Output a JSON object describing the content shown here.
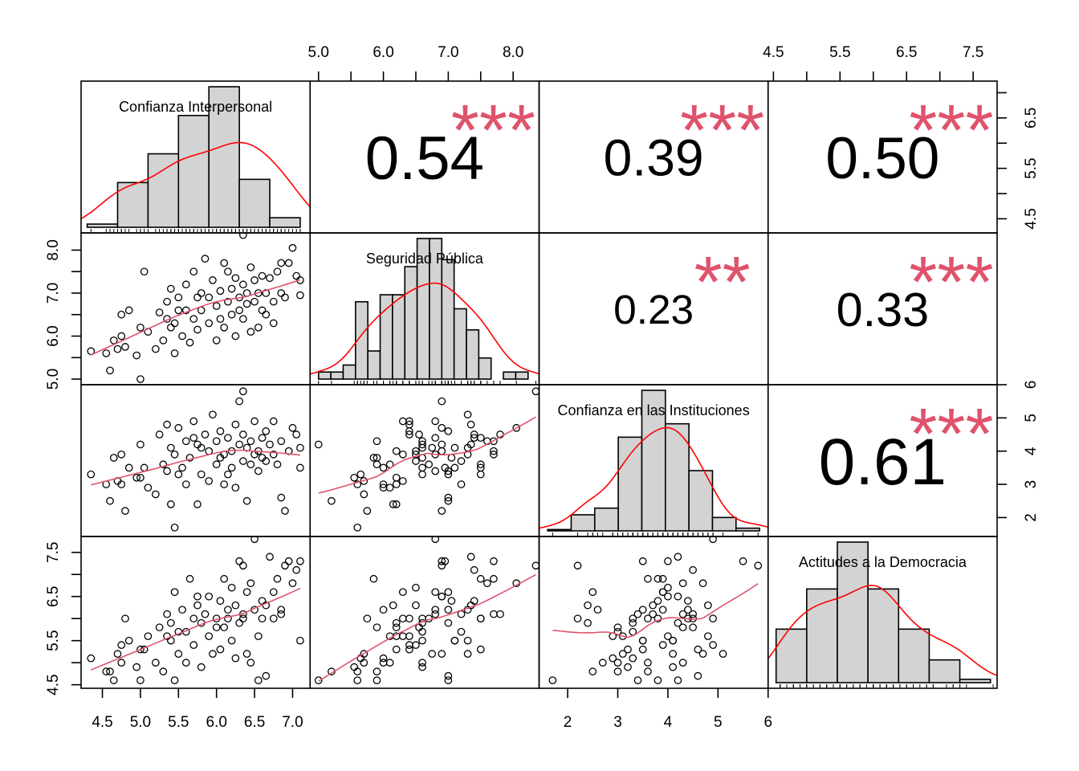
{
  "chart_data": {
    "type": "scatter-matrix",
    "title": "",
    "colors": {
      "hist_fill": "#D3D3D3",
      "density": "#FF0000",
      "smooth": "#DF536B",
      "stars": "#DF536B",
      "points": "#000000"
    },
    "variables": [
      {
        "name": "Confianza Interpersonal",
        "range": [
          4.22,
          7.23
        ],
        "hist": {
          "start": 4.3,
          "width": 0.4,
          "counts": [
            1,
            14,
            23,
            35,
            44,
            15,
            3
          ]
        }
      },
      {
        "name": "Seguridad Pública",
        "range": [
          4.87,
          8.4
        ],
        "hist": {
          "start": 5.0,
          "width": 0.19,
          "counts": [
            1,
            1,
            2,
            11,
            4,
            12,
            12,
            16,
            20,
            20,
            17,
            10,
            7,
            3,
            0,
            1,
            1
          ]
        }
      },
      {
        "name": "Confianza en las Instituciones",
        "range": [
          1.43,
          6.0
        ],
        "hist": {
          "start": 1.6,
          "width": 0.47,
          "counts": [
            1,
            12,
            17,
            70,
            105,
            80,
            45,
            10,
            2
          ]
        }
      },
      {
        "name": "Actitudes a la Democracia",
        "range": [
          4.42,
          7.86
        ],
        "hist": {
          "start": 4.54,
          "width": 0.46,
          "counts": [
            8,
            14,
            21,
            14,
            8,
            3.4,
            0.5
          ]
        }
      }
    ],
    "correlations": [
      {
        "row": 0,
        "col": 1,
        "value": "0.54",
        "stars": "***"
      },
      {
        "row": 0,
        "col": 2,
        "value": "0.39",
        "stars": "***"
      },
      {
        "row": 0,
        "col": 3,
        "value": "0.50",
        "stars": "***"
      },
      {
        "row": 1,
        "col": 2,
        "value": "0.23",
        "stars": "**"
      },
      {
        "row": 1,
        "col": 3,
        "value": "0.33",
        "stars": "***"
      },
      {
        "row": 2,
        "col": 3,
        "value": "0.61",
        "stars": "***"
      }
    ],
    "axes": [
      {
        "var": 0,
        "side": "bottom",
        "ticks": [
          4.5,
          5.0,
          5.5,
          6.0,
          6.5,
          7.0
        ],
        "labels": [
          [
            4.5,
            "4.5"
          ],
          [
            5.0,
            "5.0"
          ],
          [
            5.5,
            "5.5"
          ],
          [
            6.0,
            "6.0"
          ],
          [
            6.5,
            "6.5"
          ],
          [
            7.0,
            "7.0"
          ]
        ]
      },
      {
        "var": 1,
        "side": "top",
        "ticks": [
          5.0,
          5.5,
          6.0,
          6.5,
          7.0,
          7.5,
          8.0
        ],
        "labels": [
          [
            5.0,
            "5.0"
          ],
          [
            6.0,
            "6.0"
          ],
          [
            7.0,
            "7.0"
          ],
          [
            8.0,
            "8.0"
          ]
        ]
      },
      {
        "var": 2,
        "side": "bottom",
        "ticks": [
          2,
          3,
          4,
          5,
          6
        ],
        "labels": [
          [
            2,
            "2"
          ],
          [
            3,
            "3"
          ],
          [
            4,
            "4"
          ],
          [
            5,
            "5"
          ],
          [
            6,
            "6"
          ]
        ]
      },
      {
        "var": 3,
        "side": "top",
        "ticks": [
          4.5,
          5.0,
          5.5,
          6.0,
          6.5,
          7.0,
          7.5
        ],
        "labels": [
          [
            4.5,
            "4.5"
          ],
          [
            5.5,
            "5.5"
          ],
          [
            6.5,
            "6.5"
          ],
          [
            7.5,
            "7.5"
          ]
        ]
      },
      {
        "var": 0,
        "side": "right",
        "ticks": [
          4.5,
          5.0,
          5.5,
          6.0,
          6.5,
          7.0
        ],
        "labels": [
          [
            4.5,
            "4.5"
          ],
          [
            5.5,
            "5.5"
          ],
          [
            6.5,
            "6.5"
          ]
        ]
      },
      {
        "var": 1,
        "side": "left",
        "ticks": [
          5.0,
          5.5,
          6.0,
          6.5,
          7.0,
          7.5,
          8.0
        ],
        "labels": [
          [
            5.0,
            "5.0"
          ],
          [
            6.0,
            "6.0"
          ],
          [
            7.0,
            "7.0"
          ],
          [
            8.0,
            "8.0"
          ]
        ]
      },
      {
        "var": 2,
        "side": "right",
        "ticks": [
          2,
          3,
          4,
          5,
          6
        ],
        "labels": [
          [
            2,
            "2"
          ],
          [
            3,
            "3"
          ],
          [
            4,
            "4"
          ],
          [
            5,
            "5"
          ],
          [
            6,
            "6"
          ]
        ]
      },
      {
        "var": 3,
        "side": "left",
        "ticks": [
          4.5,
          5.0,
          5.5,
          6.0,
          6.5,
          7.0,
          7.5
        ],
        "labels": [
          [
            4.5,
            "4.5"
          ],
          [
            5.5,
            "5.5"
          ],
          [
            6.5,
            "6.5"
          ],
          [
            7.5,
            "7.5"
          ]
        ]
      }
    ],
    "observations": [
      [
        4.35,
        5.65,
        3.3,
        5.1
      ],
      [
        4.55,
        5.6,
        3.0,
        4.8
      ],
      [
        4.6,
        5.2,
        2.5,
        4.8
      ],
      [
        4.65,
        5.9,
        3.8,
        4.6
      ],
      [
        4.7,
        5.7,
        3.1,
        5.2
      ],
      [
        4.75,
        6.5,
        3.9,
        5.4
      ],
      [
        4.75,
        6.0,
        3.0,
        5.0
      ],
      [
        4.8,
        5.75,
        2.2,
        6.0
      ],
      [
        4.85,
        6.6,
        3.5,
        5.5
      ],
      [
        4.95,
        5.55,
        3.2,
        4.9
      ],
      [
        5.0,
        5.0,
        4.2,
        4.6
      ],
      [
        5.05,
        7.5,
        3.5,
        5.3
      ],
      [
        5.1,
        6.1,
        2.9,
        5.6
      ],
      [
        5.2,
        5.7,
        2.7,
        5.0
      ],
      [
        5.25,
        6.55,
        4.5,
        5.8
      ],
      [
        5.3,
        5.9,
        3.6,
        4.8
      ],
      [
        5.35,
        6.8,
        3.4,
        6.1
      ],
      [
        5.4,
        7.1,
        4.1,
        5.5
      ],
      [
        5.4,
        6.2,
        2.4,
        5.9
      ],
      [
        5.45,
        5.6,
        1.7,
        4.6
      ],
      [
        5.45,
        6.3,
        3.9,
        6.6
      ],
      [
        5.5,
        6.9,
        4.7,
        5.2
      ],
      [
        5.55,
        6.0,
        3.5,
        6.2
      ],
      [
        5.6,
        6.6,
        4.3,
        5.0
      ],
      [
        5.6,
        7.2,
        3.0,
        5.7
      ],
      [
        5.65,
        5.85,
        3.8,
        6.9
      ],
      [
        5.7,
        7.5,
        4.4,
        6.0
      ],
      [
        5.7,
        6.4,
        4.9,
        5.4
      ],
      [
        5.75,
        6.15,
        2.4,
        6.3
      ],
      [
        5.8,
        7.0,
        3.3,
        5.9
      ],
      [
        5.8,
        6.6,
        4.1,
        4.9
      ],
      [
        5.85,
        7.8,
        4.5,
        6.1
      ],
      [
        5.9,
        6.3,
        3.1,
        5.6
      ],
      [
        5.9,
        6.9,
        4.0,
        6.5
      ],
      [
        5.95,
        7.3,
        5.1,
        5.2
      ],
      [
        6.0,
        6.7,
        3.6,
        6.0
      ],
      [
        6.0,
        5.9,
        4.3,
        5.8
      ],
      [
        6.05,
        7.05,
        3.8,
        6.4
      ],
      [
        6.05,
        6.4,
        4.6,
        5.3
      ],
      [
        6.1,
        7.7,
        3.9,
        6.9
      ],
      [
        6.1,
        6.2,
        3.0,
        5.8
      ],
      [
        6.15,
        6.8,
        4.4,
        6.2
      ],
      [
        6.2,
        7.1,
        3.5,
        5.5
      ],
      [
        6.2,
        6.5,
        4.0,
        6.7
      ],
      [
        6.25,
        6.0,
        2.9,
        5.1
      ],
      [
        6.25,
        7.35,
        4.8,
        6.3
      ],
      [
        6.3,
        6.9,
        5.5,
        7.3
      ],
      [
        6.3,
        6.6,
        4.2,
        5.9
      ],
      [
        6.35,
        7.2,
        3.7,
        6.1
      ],
      [
        6.35,
        6.4,
        4.5,
        6.0
      ],
      [
        6.35,
        8.35,
        5.8,
        7.2
      ],
      [
        6.4,
        6.75,
        4.1,
        5.2
      ],
      [
        6.4,
        7.0,
        2.5,
        6.6
      ],
      [
        6.45,
        6.1,
        3.6,
        5.0
      ],
      [
        6.45,
        7.6,
        4.3,
        6.8
      ],
      [
        6.5,
        6.8,
        4.9,
        7.8
      ],
      [
        6.5,
        7.3,
        3.9,
        6.2
      ],
      [
        6.55,
        6.2,
        4.0,
        5.6
      ],
      [
        6.55,
        7.0,
        3.4,
        4.6
      ],
      [
        6.6,
        7.4,
        4.4,
        6.4
      ],
      [
        6.6,
        6.6,
        3.8,
        6.0
      ],
      [
        6.65,
        7.0,
        4.6,
        4.7
      ],
      [
        6.7,
        7.35,
        4.2,
        7.4
      ],
      [
        6.75,
        6.8,
        3.9,
        6.6
      ],
      [
        6.75,
        6.3,
        4.9,
        6.0
      ],
      [
        6.8,
        7.5,
        3.6,
        6.9
      ],
      [
        6.85,
        7.0,
        2.6,
        6.2
      ],
      [
        6.85,
        7.7,
        4.3,
        6.1
      ],
      [
        6.9,
        6.9,
        2.2,
        7.2
      ],
      [
        6.95,
        7.7,
        4.0,
        7.3
      ],
      [
        7.0,
        8.05,
        4.7,
        6.8
      ],
      [
        7.05,
        7.4,
        4.5,
        7.1
      ],
      [
        7.1,
        6.95,
        3.5,
        7.3
      ],
      [
        7.1,
        7.3,
        4.1,
        5.5
      ],
      [
        5.5,
        6.6,
        3.3,
        5.7
      ],
      [
        5.0,
        6.2,
        3.2,
        5.3
      ],
      [
        5.75,
        6.9,
        4.2,
        6.5
      ],
      [
        6.15,
        7.5,
        3.3,
        6.0
      ],
      [
        5.35,
        6.4,
        4.8,
        5.6
      ],
      [
        6.65,
        6.5,
        3.7,
        6.3
      ]
    ]
  }
}
